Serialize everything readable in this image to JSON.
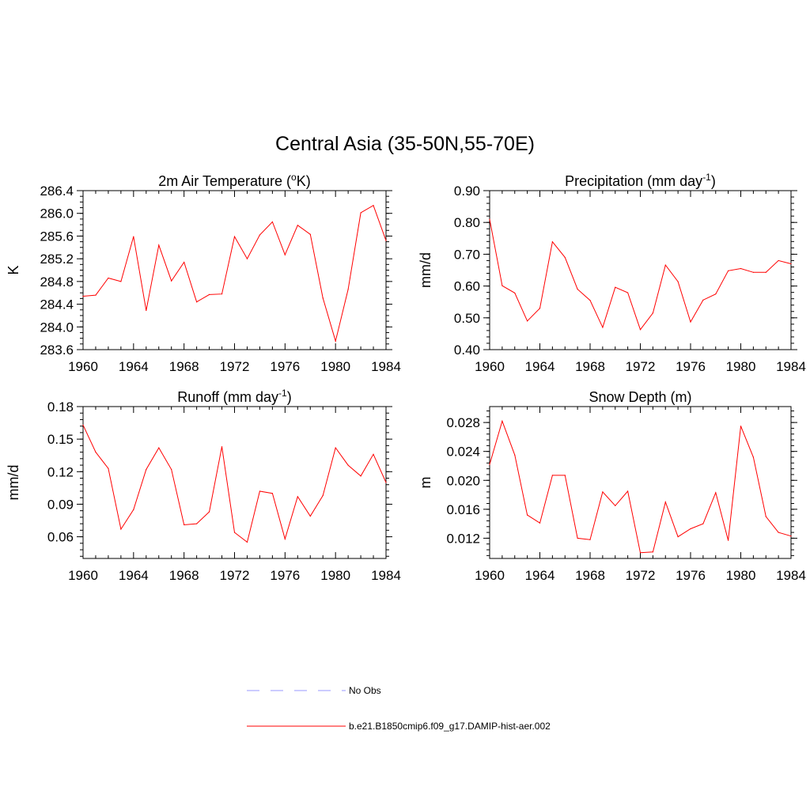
{
  "title": "Central Asia (35-50N,55-70E)",
  "colors": {
    "model_line": "#ff0000",
    "obs_line": "#9999ff",
    "axis": "#000000"
  },
  "legend": {
    "entries": [
      {
        "label": "No Obs",
        "style": "dashed"
      },
      {
        "label": "b.e21.B1850cmip6.f09_g17.DAMIP-hist-aer.002",
        "style": "solid"
      }
    ]
  },
  "chart_data": [
    {
      "type": "line",
      "title": "2m Air Temperature (",
      "title_sup": "o",
      "title_tail": "K)",
      "ylabel": "K",
      "xlim": [
        1960,
        1984
      ],
      "ylim": [
        283.6,
        286.4
      ],
      "x_ticks": [
        1960,
        1964,
        1968,
        1972,
        1976,
        1980,
        1984
      ],
      "x_tick_labels": [
        "1960",
        "1964",
        "1968",
        "1972",
        "1976",
        "1980",
        "1984"
      ],
      "y_ticks": [
        283.6,
        284.0,
        284.4,
        284.8,
        285.2,
        285.6,
        286.0,
        286.4
      ],
      "y_tick_labels": [
        "283.6",
        "284.0",
        "284.4",
        "284.8",
        "285.2",
        "285.6",
        "286.0",
        "286.4"
      ],
      "y_minor_step": 0.1,
      "x": [
        1960,
        1961,
        1962,
        1963,
        1964,
        1965,
        1966,
        1967,
        1968,
        1969,
        1970,
        1971,
        1972,
        1973,
        1974,
        1975,
        1976,
        1977,
        1978,
        1979,
        1980,
        1981,
        1982,
        1983,
        1984
      ],
      "series": [
        {
          "values": [
            284.54,
            284.56,
            284.86,
            284.8,
            285.59,
            284.29,
            285.44,
            284.81,
            285.14,
            284.44,
            284.57,
            284.58,
            285.59,
            285.2,
            285.62,
            285.85,
            285.27,
            285.79,
            285.63,
            284.51,
            283.75,
            284.66,
            286.01,
            286.14,
            285.52
          ]
        }
      ]
    },
    {
      "type": "line",
      "title": "Precipitation (mm day",
      "title_sup": "-1",
      "title_tail": ")",
      "ylabel": "mm/d",
      "xlim": [
        1960,
        1984
      ],
      "ylim": [
        0.4,
        0.9
      ],
      "x_ticks": [
        1960,
        1964,
        1968,
        1972,
        1976,
        1980,
        1984
      ],
      "x_tick_labels": [
        "1960",
        "1964",
        "1968",
        "1972",
        "1976",
        "1980",
        "1984"
      ],
      "y_ticks": [
        0.4,
        0.5,
        0.6,
        0.7,
        0.8,
        0.9
      ],
      "y_tick_labels": [
        "0.40",
        "0.50",
        "0.60",
        "0.70",
        "0.80",
        "0.90"
      ],
      "y_minor_step": 0.02,
      "x": [
        1960,
        1961,
        1962,
        1963,
        1964,
        1965,
        1966,
        1967,
        1968,
        1969,
        1970,
        1971,
        1972,
        1973,
        1974,
        1975,
        1976,
        1977,
        1978,
        1979,
        1980,
        1981,
        1982,
        1983,
        1984
      ],
      "series": [
        {
          "values": [
            0.81,
            0.601,
            0.578,
            0.49,
            0.53,
            0.739,
            0.69,
            0.59,
            0.555,
            0.47,
            0.596,
            0.579,
            0.463,
            0.515,
            0.666,
            0.614,
            0.487,
            0.556,
            0.575,
            0.648,
            0.655,
            0.643,
            0.643,
            0.68,
            0.67
          ]
        }
      ]
    },
    {
      "type": "line",
      "title": "Runoff (mm day",
      "title_sup": "-1",
      "title_tail": ")",
      "ylabel": "mm/d",
      "xlim": [
        1960,
        1984
      ],
      "ylim": [
        0.04,
        0.18
      ],
      "x_ticks": [
        1960,
        1964,
        1968,
        1972,
        1976,
        1980,
        1984
      ],
      "x_tick_labels": [
        "1960",
        "1964",
        "1968",
        "1972",
        "1976",
        "1980",
        "1984"
      ],
      "y_ticks": [
        0.06,
        0.09,
        0.12,
        0.15,
        0.18
      ],
      "y_tick_labels": [
        "0.06",
        "0.09",
        "0.12",
        "0.15",
        "0.18"
      ],
      "y_minor_step": 0.006,
      "x": [
        1960,
        1961,
        1962,
        1963,
        1964,
        1965,
        1966,
        1967,
        1968,
        1969,
        1970,
        1971,
        1972,
        1973,
        1974,
        1975,
        1976,
        1977,
        1978,
        1979,
        1980,
        1981,
        1982,
        1983,
        1984
      ],
      "series": [
        {
          "values": [
            0.163,
            0.138,
            0.123,
            0.067,
            0.085,
            0.122,
            0.142,
            0.122,
            0.071,
            0.072,
            0.083,
            0.143,
            0.064,
            0.055,
            0.102,
            0.1,
            0.058,
            0.097,
            0.079,
            0.098,
            0.142,
            0.126,
            0.116,
            0.136,
            0.11
          ]
        }
      ]
    },
    {
      "type": "line",
      "title": "Snow Depth (m)",
      "title_sup": "",
      "title_tail": "",
      "ylabel": "m",
      "xlim": [
        1960,
        1984
      ],
      "ylim": [
        0.0092,
        0.0302
      ],
      "x_ticks": [
        1960,
        1964,
        1968,
        1972,
        1976,
        1980,
        1984
      ],
      "x_tick_labels": [
        "1960",
        "1964",
        "1968",
        "1972",
        "1976",
        "1980",
        "1984"
      ],
      "y_ticks": [
        0.012,
        0.016,
        0.02,
        0.024,
        0.028
      ],
      "y_tick_labels": [
        "0.012",
        "0.016",
        "0.020",
        "0.024",
        "0.028"
      ],
      "y_minor_step": 0.0008,
      "x": [
        1960,
        1961,
        1962,
        1963,
        1964,
        1965,
        1966,
        1967,
        1968,
        1969,
        1970,
        1971,
        1972,
        1973,
        1974,
        1975,
        1976,
        1977,
        1978,
        1979,
        1980,
        1981,
        1982,
        1983,
        1984
      ],
      "series": [
        {
          "values": [
            0.0222,
            0.0282,
            0.0235,
            0.0152,
            0.0141,
            0.0207,
            0.0207,
            0.012,
            0.0118,
            0.0184,
            0.0165,
            0.0185,
            0.01,
            0.0101,
            0.017,
            0.0122,
            0.0133,
            0.014,
            0.0183,
            0.0117,
            0.0275,
            0.0232,
            0.015,
            0.0128,
            0.0123
          ]
        }
      ]
    }
  ]
}
